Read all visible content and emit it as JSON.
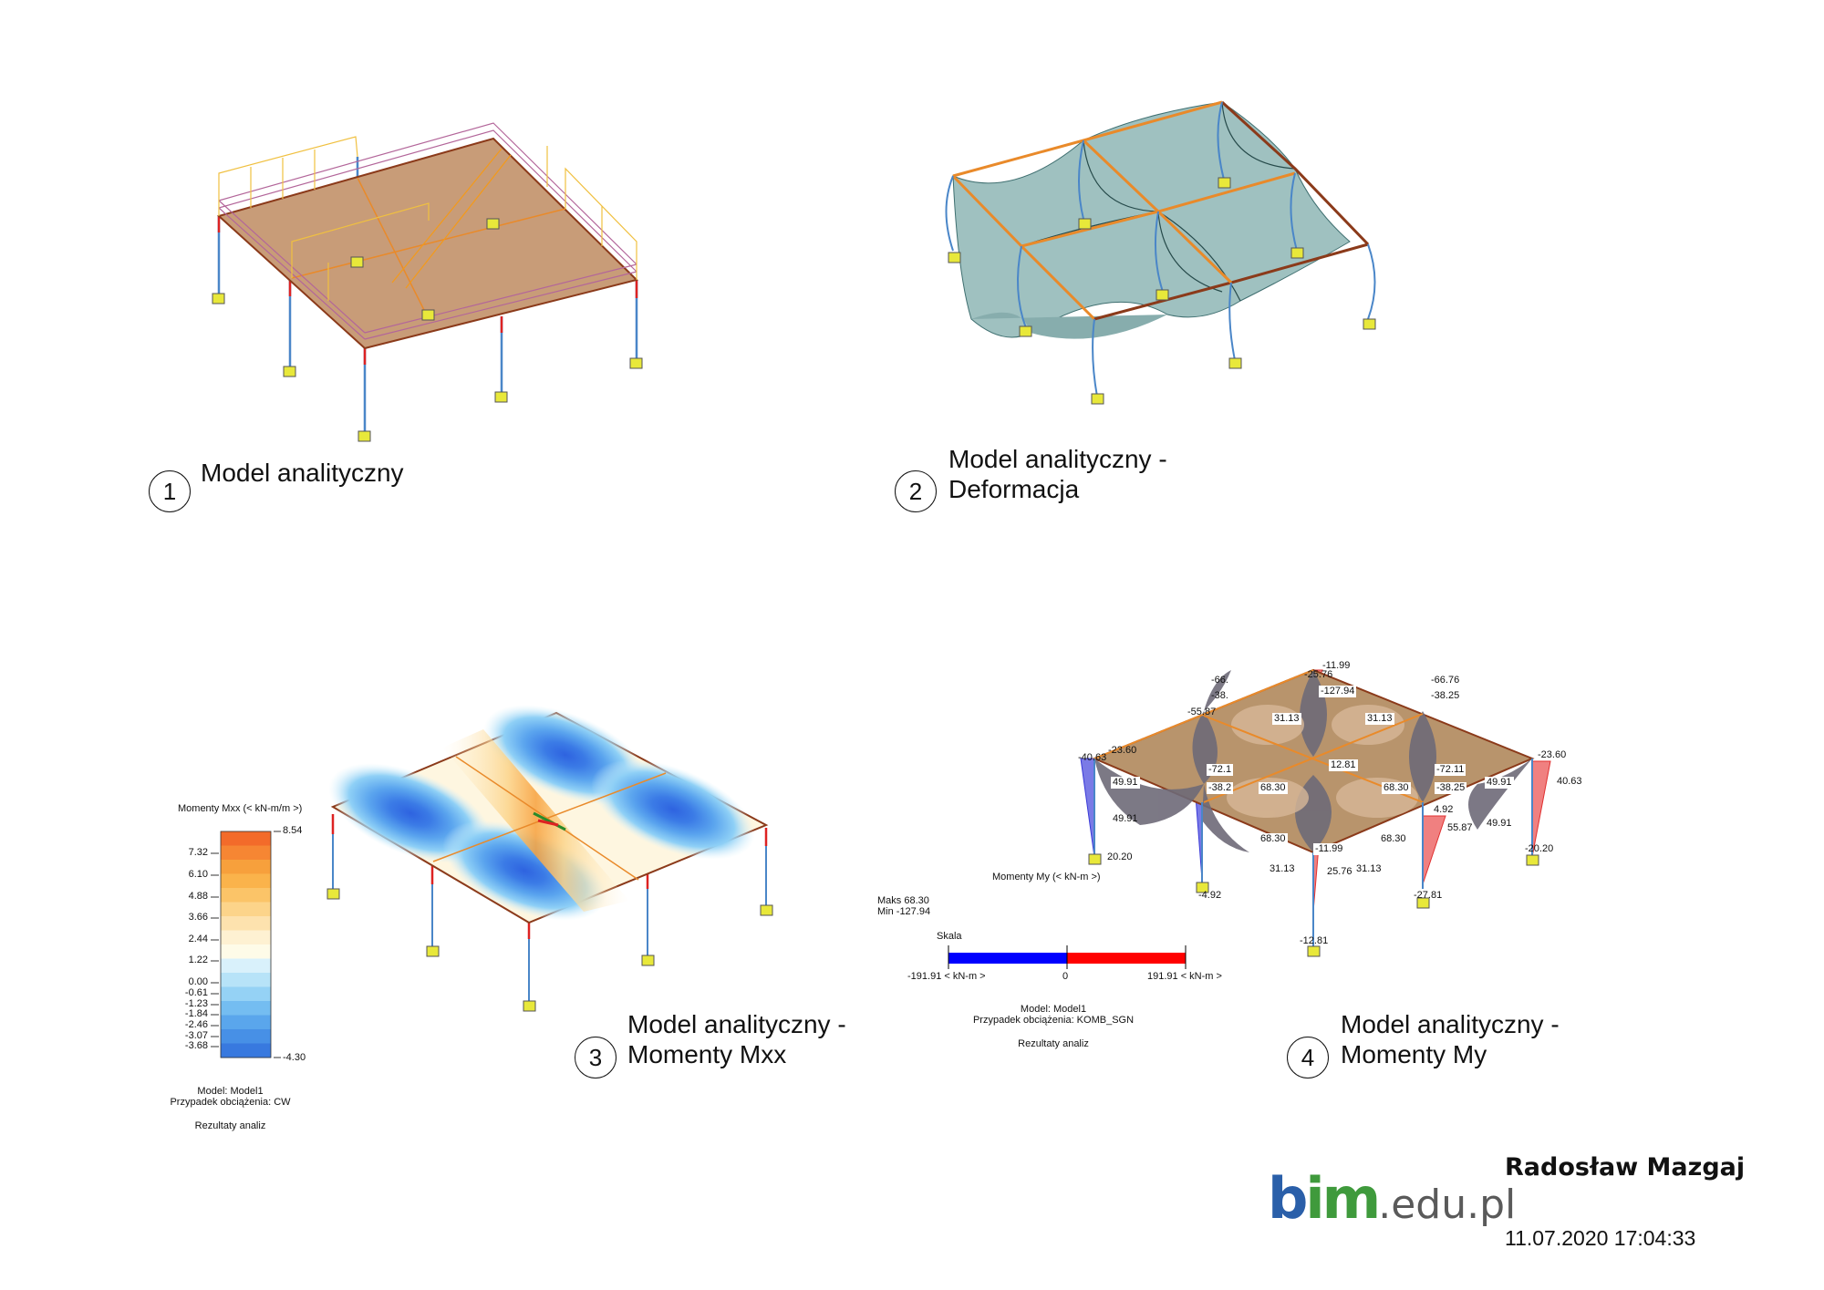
{
  "views": [
    {
      "num": "1",
      "title": [
        "Model analityczny"
      ]
    },
    {
      "num": "2",
      "title": [
        "Model analityczny -",
        "Deformacja"
      ]
    },
    {
      "num": "3",
      "title": [
        "Model analityczny -",
        "Momenty Mxx"
      ]
    },
    {
      "num": "4",
      "title": [
        "Model analityczny -",
        "Momenty My"
      ]
    }
  ],
  "legend_mxx": {
    "title": "Momenty Mxx (< kN-m/m >)",
    "max": "8.54",
    "min": "-4.30",
    "ticks": [
      "7.32",
      "6.10",
      "4.88",
      "3.66",
      "2.44",
      "1.22",
      "0.00",
      "-0.61",
      "-1.23",
      "-1.84",
      "-2.46",
      "-3.07",
      "-3.68"
    ],
    "colors": [
      "#f36b2a",
      "#f68633",
      "#f7a03c",
      "#fab34b",
      "#fbc468",
      "#fcd48a",
      "#fde2ae",
      "#fef1d2",
      "#fefbe8",
      "#d9f1fb",
      "#b7e3f8",
      "#95d2f5",
      "#74bdf1",
      "#5aa6ec",
      "#4790e6",
      "#3879df"
    ],
    "model": "Model: Model1",
    "case": "Przypadek obciążenia: CW",
    "results": "Rezultaty analiz"
  },
  "legend_my": {
    "title": "Momenty My (< kN-m >)",
    "maks": "Maks 68.30",
    "min": "Min -127.94",
    "scale_label": "Skala",
    "scale_left": "-191.91 < kN-m >",
    "scale_zero": "0",
    "scale_right": "191.91 < kN-m >",
    "neg_color": "#0000ff",
    "pos_color": "#ff0000",
    "model": "Model: Model1",
    "case": "Przypadek obciążenia: KOMB_SGN",
    "results": "Rezultaty analiz"
  },
  "my_values": [
    {
      "t": "-11.99",
      "boxed": false
    },
    {
      "t": "-25.76",
      "boxed": false
    },
    {
      "t": "-127.94",
      "boxed": true
    },
    {
      "t": "-66.",
      "boxed": false
    },
    {
      "t": "-38.",
      "boxed": false
    },
    {
      "t": "-55.87",
      "boxed": false
    },
    {
      "t": "-66.76",
      "boxed": false
    },
    {
      "t": "-38.25",
      "boxed": false
    },
    {
      "t": "31.13",
      "boxed": true
    },
    {
      "t": "31.13",
      "boxed": true
    },
    {
      "t": "-23.60",
      "boxed": false
    },
    {
      "t": "-40.63",
      "boxed": false
    },
    {
      "t": "-72.1",
      "boxed": true
    },
    {
      "t": "12.81",
      "boxed": true
    },
    {
      "t": "-72.11",
      "boxed": true
    },
    {
      "t": "-23.60",
      "boxed": false
    },
    {
      "t": "40.63",
      "boxed": false
    },
    {
      "t": "-38.2",
      "boxed": true
    },
    {
      "t": "68.30",
      "boxed": true
    },
    {
      "t": "68.30",
      "boxed": true
    },
    {
      "t": "-38.25",
      "boxed": true
    },
    {
      "t": "49.91",
      "boxed": true
    },
    {
      "t": "49.91",
      "boxed": true
    },
    {
      "t": "49.91",
      "boxed": false
    },
    {
      "t": "4.92",
      "boxed": false
    },
    {
      "t": "55.87",
      "boxed": false
    },
    {
      "t": "49.91",
      "boxed": false
    },
    {
      "t": "68.30",
      "boxed": true
    },
    {
      "t": "-11.99",
      "boxed": true
    },
    {
      "t": "68.30",
      "boxed": true
    },
    {
      "t": "20.20",
      "boxed": false
    },
    {
      "t": "-20.20",
      "boxed": false
    },
    {
      "t": "31.13",
      "boxed": false
    },
    {
      "t": "25.76",
      "boxed": false
    },
    {
      "t": "31.13",
      "boxed": false
    },
    {
      "t": "-4.92",
      "boxed": false
    },
    {
      "t": "-27.81",
      "boxed": false
    },
    {
      "t": "-12.81",
      "boxed": false
    }
  ],
  "footer": {
    "logo_b": "b",
    "logo_im": "im",
    "logo_domain": ".edu.pl",
    "author": "Radosław Mazgaj",
    "date": "11.07.2020 17:04:33"
  },
  "colors": {
    "slab1": "#c89c78",
    "deformed": "#9fc1c0",
    "roof_brown": "#b8946c",
    "support": "#e8e83a",
    "beam_edge": "#8b3a1a"
  }
}
